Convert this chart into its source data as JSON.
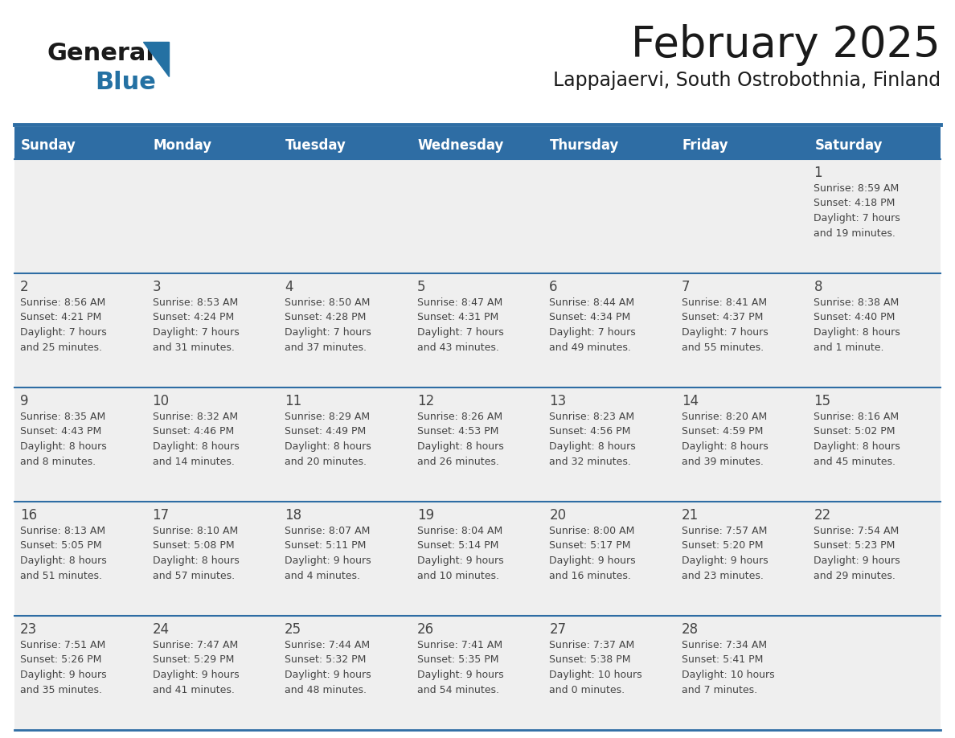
{
  "title": "February 2025",
  "subtitle": "Lappajaervi, South Ostrobothnia, Finland",
  "header_bg": "#2E6DA4",
  "header_text_color": "#FFFFFF",
  "cell_bg": "#EFEFEF",
  "text_color": "#444444",
  "line_color": "#2E6DA4",
  "days_of_week": [
    "Sunday",
    "Monday",
    "Tuesday",
    "Wednesday",
    "Thursday",
    "Friday",
    "Saturday"
  ],
  "calendar_data": [
    [
      null,
      null,
      null,
      null,
      null,
      null,
      {
        "day": "1",
        "sunrise": "8:59 AM",
        "sunset": "4:18 PM",
        "daylight_line1": "7 hours",
        "daylight_line2": "and 19 minutes."
      }
    ],
    [
      {
        "day": "2",
        "sunrise": "8:56 AM",
        "sunset": "4:21 PM",
        "daylight_line1": "7 hours",
        "daylight_line2": "and 25 minutes."
      },
      {
        "day": "3",
        "sunrise": "8:53 AM",
        "sunset": "4:24 PM",
        "daylight_line1": "7 hours",
        "daylight_line2": "and 31 minutes."
      },
      {
        "day": "4",
        "sunrise": "8:50 AM",
        "sunset": "4:28 PM",
        "daylight_line1": "7 hours",
        "daylight_line2": "and 37 minutes."
      },
      {
        "day": "5",
        "sunrise": "8:47 AM",
        "sunset": "4:31 PM",
        "daylight_line1": "7 hours",
        "daylight_line2": "and 43 minutes."
      },
      {
        "day": "6",
        "sunrise": "8:44 AM",
        "sunset": "4:34 PM",
        "daylight_line1": "7 hours",
        "daylight_line2": "and 49 minutes."
      },
      {
        "day": "7",
        "sunrise": "8:41 AM",
        "sunset": "4:37 PM",
        "daylight_line1": "7 hours",
        "daylight_line2": "and 55 minutes."
      },
      {
        "day": "8",
        "sunrise": "8:38 AM",
        "sunset": "4:40 PM",
        "daylight_line1": "8 hours",
        "daylight_line2": "and 1 minute."
      }
    ],
    [
      {
        "day": "9",
        "sunrise": "8:35 AM",
        "sunset": "4:43 PM",
        "daylight_line1": "8 hours",
        "daylight_line2": "and 8 minutes."
      },
      {
        "day": "10",
        "sunrise": "8:32 AM",
        "sunset": "4:46 PM",
        "daylight_line1": "8 hours",
        "daylight_line2": "and 14 minutes."
      },
      {
        "day": "11",
        "sunrise": "8:29 AM",
        "sunset": "4:49 PM",
        "daylight_line1": "8 hours",
        "daylight_line2": "and 20 minutes."
      },
      {
        "day": "12",
        "sunrise": "8:26 AM",
        "sunset": "4:53 PM",
        "daylight_line1": "8 hours",
        "daylight_line2": "and 26 minutes."
      },
      {
        "day": "13",
        "sunrise": "8:23 AM",
        "sunset": "4:56 PM",
        "daylight_line1": "8 hours",
        "daylight_line2": "and 32 minutes."
      },
      {
        "day": "14",
        "sunrise": "8:20 AM",
        "sunset": "4:59 PM",
        "daylight_line1": "8 hours",
        "daylight_line2": "and 39 minutes."
      },
      {
        "day": "15",
        "sunrise": "8:16 AM",
        "sunset": "5:02 PM",
        "daylight_line1": "8 hours",
        "daylight_line2": "and 45 minutes."
      }
    ],
    [
      {
        "day": "16",
        "sunrise": "8:13 AM",
        "sunset": "5:05 PM",
        "daylight_line1": "8 hours",
        "daylight_line2": "and 51 minutes."
      },
      {
        "day": "17",
        "sunrise": "8:10 AM",
        "sunset": "5:08 PM",
        "daylight_line1": "8 hours",
        "daylight_line2": "and 57 minutes."
      },
      {
        "day": "18",
        "sunrise": "8:07 AM",
        "sunset": "5:11 PM",
        "daylight_line1": "9 hours",
        "daylight_line2": "and 4 minutes."
      },
      {
        "day": "19",
        "sunrise": "8:04 AM",
        "sunset": "5:14 PM",
        "daylight_line1": "9 hours",
        "daylight_line2": "and 10 minutes."
      },
      {
        "day": "20",
        "sunrise": "8:00 AM",
        "sunset": "5:17 PM",
        "daylight_line1": "9 hours",
        "daylight_line2": "and 16 minutes."
      },
      {
        "day": "21",
        "sunrise": "7:57 AM",
        "sunset": "5:20 PM",
        "daylight_line1": "9 hours",
        "daylight_line2": "and 23 minutes."
      },
      {
        "day": "22",
        "sunrise": "7:54 AM",
        "sunset": "5:23 PM",
        "daylight_line1": "9 hours",
        "daylight_line2": "and 29 minutes."
      }
    ],
    [
      {
        "day": "23",
        "sunrise": "7:51 AM",
        "sunset": "5:26 PM",
        "daylight_line1": "9 hours",
        "daylight_line2": "and 35 minutes."
      },
      {
        "day": "24",
        "sunrise": "7:47 AM",
        "sunset": "5:29 PM",
        "daylight_line1": "9 hours",
        "daylight_line2": "and 41 minutes."
      },
      {
        "day": "25",
        "sunrise": "7:44 AM",
        "sunset": "5:32 PM",
        "daylight_line1": "9 hours",
        "daylight_line2": "and 48 minutes."
      },
      {
        "day": "26",
        "sunrise": "7:41 AM",
        "sunset": "5:35 PM",
        "daylight_line1": "9 hours",
        "daylight_line2": "and 54 minutes."
      },
      {
        "day": "27",
        "sunrise": "7:37 AM",
        "sunset": "5:38 PM",
        "daylight_line1": "10 hours",
        "daylight_line2": "and 0 minutes."
      },
      {
        "day": "28",
        "sunrise": "7:34 AM",
        "sunset": "5:41 PM",
        "daylight_line1": "10 hours",
        "daylight_line2": "and 7 minutes."
      },
      null
    ]
  ],
  "logo_text_general": "General",
  "logo_text_blue": "Blue",
  "logo_color_general": "#1a1a1a",
  "logo_color_blue": "#2471A3",
  "logo_triangle_color": "#2471A3",
  "figw": 11.88,
  "figh": 9.18,
  "dpi": 100
}
